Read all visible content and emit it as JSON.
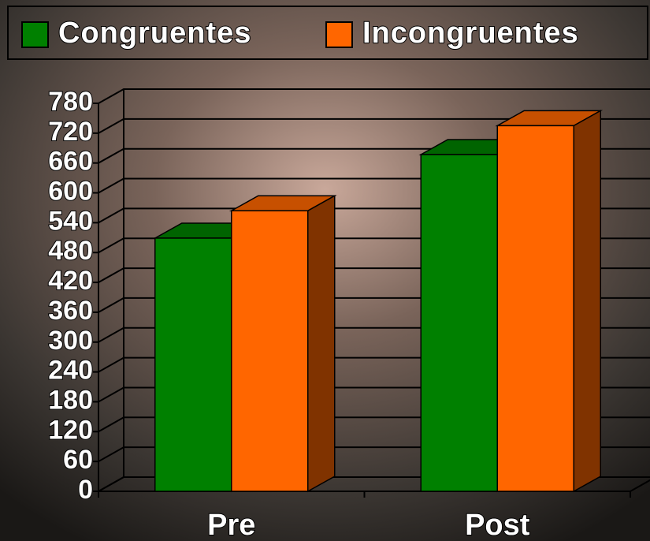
{
  "chart_data": {
    "type": "bar",
    "categories": [
      "Pre",
      "Post"
    ],
    "series": [
      {
        "name": "Congruentes",
        "color": "#008000",
        "values": [
          509,
          677
        ]
      },
      {
        "name": "Incongruentes",
        "color": "#ff6600",
        "values": [
          564,
          735
        ]
      }
    ],
    "ylim": [
      0,
      780
    ],
    "yticks": [
      0,
      60,
      120,
      180,
      240,
      300,
      360,
      420,
      480,
      540,
      600,
      660,
      720,
      780
    ],
    "grid": true,
    "legend": "top"
  }
}
